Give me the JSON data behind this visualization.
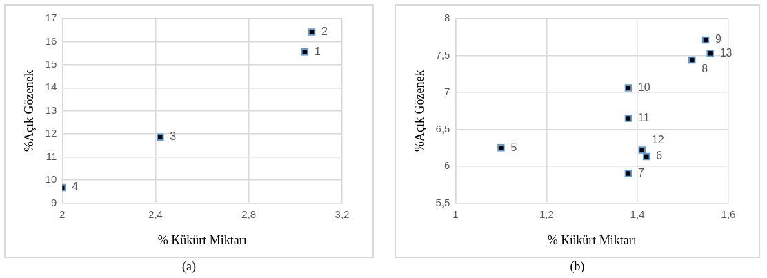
{
  "chart_data": [
    {
      "type": "scatter",
      "xlabel": "% Kükürt Miktarı",
      "ylabel": "%Açık Gözenek",
      "marker": "square",
      "grid": true,
      "x": [
        3.04,
        3.07,
        2.42,
        2.0
      ],
      "series": [
        {
          "color": "#000000",
          "values": [
            15.56,
            16.42,
            11.86,
            9.67
          ]
        }
      ],
      "xlim": [
        2,
        3.2
      ],
      "xticks": [
        2,
        {
          "value": 2.4,
          "label": "2,4"
        },
        {
          "value": 2.8,
          "label": "2,8"
        },
        {
          "value": 3.2,
          "label": "3,2"
        }
      ],
      "ylim": [
        9,
        17
      ],
      "yticks": [
        9,
        10,
        11,
        12,
        13,
        14,
        15,
        16,
        17
      ],
      "annotations": [
        {
          "text": "1",
          "x": 3.04,
          "y": 15.56
        },
        {
          "text": "2",
          "x": 3.07,
          "y": 16.42
        },
        {
          "text": "3",
          "x": 2.42,
          "y": 11.86
        },
        {
          "text": "4",
          "x": 2.0,
          "y": 9.67
        },
        "(a)"
      ]
    },
    {
      "type": "scatter",
      "xlabel": "% Kükürt Miktarı",
      "ylabel": "%Açık Gözenek",
      "marker": "square",
      "grid": true,
      "x": [
        1.1,
        1.42,
        1.38,
        1.52,
        1.55,
        1.38,
        1.38,
        1.41,
        1.56
      ],
      "series": [
        {
          "color": "#000000",
          "values": [
            6.25,
            6.13,
            5.9,
            7.44,
            7.71,
            7.06,
            6.65,
            6.22,
            7.53
          ]
        }
      ],
      "xlim": [
        1,
        1.6
      ],
      "xticks": [
        1,
        {
          "value": 1.2,
          "label": "1,2"
        },
        {
          "value": 1.4,
          "label": "1,4"
        },
        {
          "value": 1.6,
          "label": "1,6"
        }
      ],
      "ylim": [
        5.5,
        8
      ],
      "yticks": [
        {
          "value": 5.5,
          "label": "5,5"
        },
        6,
        {
          "value": 6.5,
          "label": "6,5"
        },
        7,
        {
          "value": 7.5,
          "label": "7,5"
        },
        8
      ],
      "annotations": [
        {
          "text": "5",
          "x": 1.1,
          "y": 6.25
        },
        {
          "text": "6",
          "x": 1.42,
          "y": 6.13
        },
        {
          "text": "7",
          "x": 1.38,
          "y": 5.9
        },
        {
          "text": "8",
          "x": 1.52,
          "y": 7.44
        },
        {
          "text": "9",
          "x": 1.55,
          "y": 7.71
        },
        {
          "text": "10",
          "x": 1.38,
          "y": 7.06
        },
        {
          "text": "11",
          "x": 1.38,
          "y": 6.65
        },
        {
          "text": "12",
          "x": 1.41,
          "y": 6.22
        },
        {
          "text": "13",
          "x": 1.56,
          "y": 7.53
        },
        "(b)"
      ]
    }
  ]
}
